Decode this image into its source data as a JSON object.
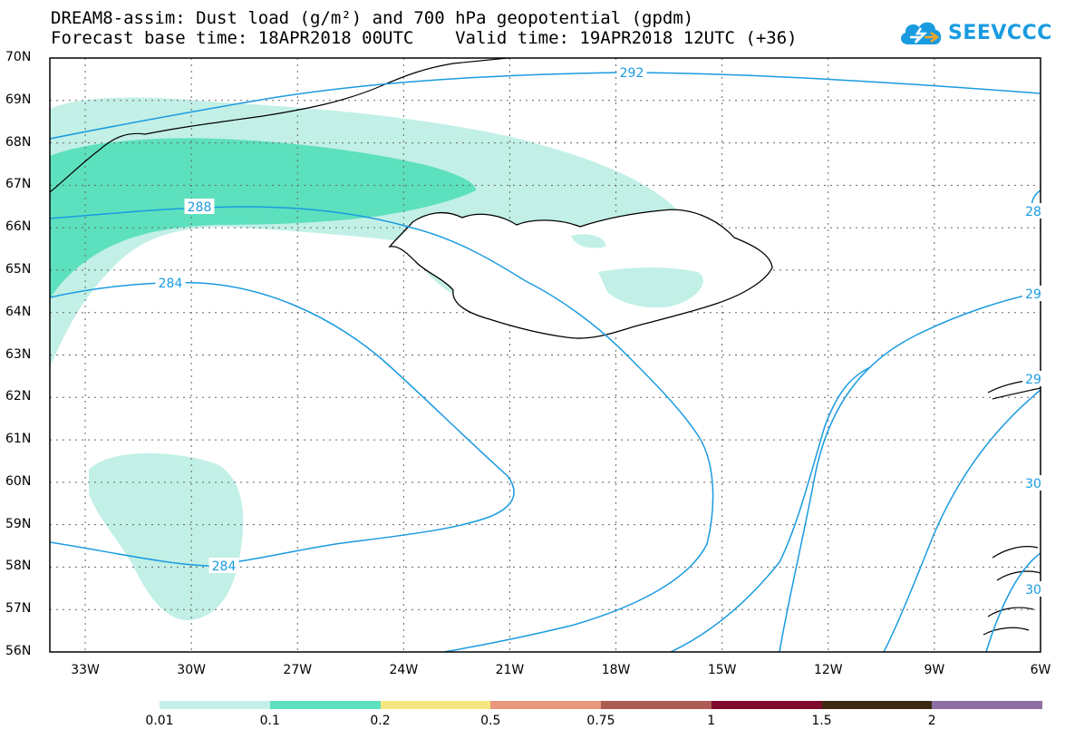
{
  "header": {
    "line1": "DREAM8-assim: Dust load (g/m²) and 700 hPa geopotential (gpdm)",
    "line2": "Forecast base time: 18APR2018 00UTC    Valid time: 19APR2018 12UTC (+36)"
  },
  "logo": {
    "text": "SEEVCCC",
    "icon": "cloud-icon",
    "color": "#1a9be0"
  },
  "latitude_labels": [
    "70N",
    "69N",
    "68N",
    "67N",
    "66N",
    "65N",
    "64N",
    "63N",
    "62N",
    "61N",
    "60N",
    "59N",
    "58N",
    "57N",
    "56N"
  ],
  "longitude_labels": [
    "33W",
    "30W",
    "27W",
    "24W",
    "21W",
    "18W",
    "15W",
    "12W",
    "9W",
    "6W"
  ],
  "contour_color": "#1a9be0",
  "contour_labels": [
    "292",
    "288",
    "284",
    "284",
    "28",
    "29",
    "29",
    "30",
    "30"
  ],
  "legend": {
    "ticks": [
      "0.01",
      "0.1",
      "0.2",
      "0.5",
      "0.75",
      "1",
      "1.5",
      "2"
    ],
    "colors": [
      "#c2f0e6",
      "#5de0bd",
      "#f5e67f",
      "#e8977a",
      "#ad5a52",
      "#7f0a2e",
      "#3c2a12",
      "#8e6fa3"
    ]
  },
  "dust_colors": {
    "low": "#c2f0e6",
    "mid": "#5de0bd"
  }
}
